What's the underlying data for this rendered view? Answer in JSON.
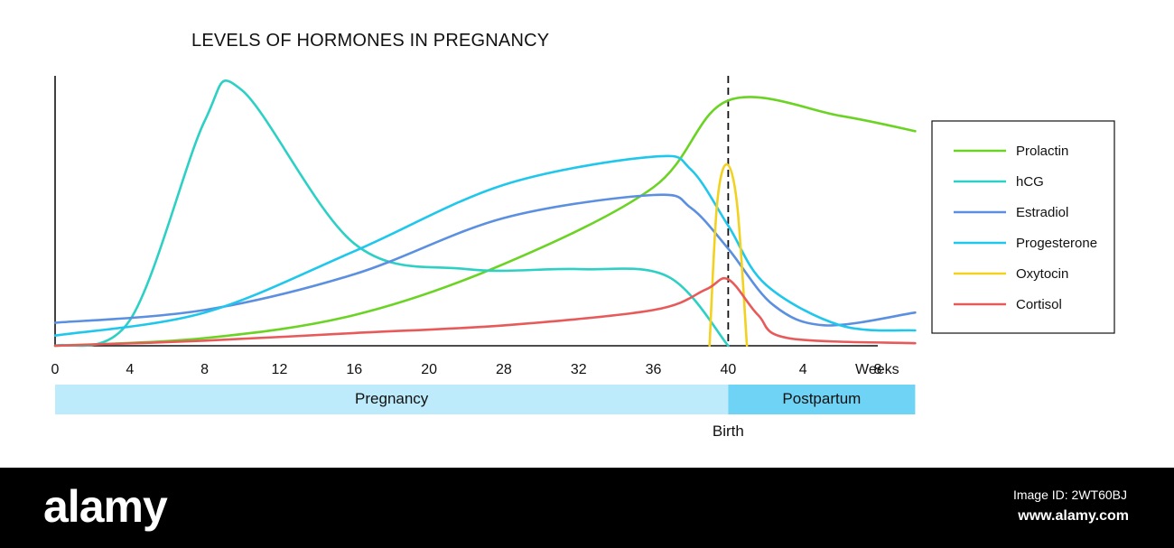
{
  "chart_data": {
    "type": "line",
    "title": "LEVELS OF HORMONES IN PREGNANCY",
    "x_ticks": [
      "0",
      "4",
      "8",
      "12",
      "16",
      "20",
      "28",
      "32",
      "36",
      "40",
      "4",
      "8"
    ],
    "x_unit_label": "Weeks",
    "phases": [
      {
        "label": "Pregnancy",
        "start_tick": 0,
        "end_tick": 9,
        "color": "#bdebfb"
      },
      {
        "label": "Postpartum",
        "start_tick": 9,
        "end_tick": 11.5,
        "color": "#6fd3f5"
      }
    ],
    "event_marker": {
      "label": "Birth",
      "at_tick": 9
    },
    "ylim": [
      0,
      100
    ],
    "series": [
      {
        "name": "Prolactin",
        "color": "#6ad323",
        "points": [
          [
            0,
            0
          ],
          [
            2,
            3
          ],
          [
            4,
            12
          ],
          [
            6,
            32
          ],
          [
            8,
            62
          ],
          [
            9,
            96
          ],
          [
            10.5,
            90
          ],
          [
            11.5,
            84
          ]
        ]
      },
      {
        "name": "hCG",
        "color": "#2dd0c4",
        "points": [
          [
            0,
            0
          ],
          [
            1,
            10
          ],
          [
            2,
            88
          ],
          [
            2.5,
            100
          ],
          [
            4,
            40
          ],
          [
            5.5,
            30
          ],
          [
            7,
            30
          ],
          [
            8.2,
            27
          ],
          [
            9,
            0
          ]
        ]
      },
      {
        "name": "Estradiol",
        "color": "#5b8fe0",
        "points": [
          [
            0,
            9
          ],
          [
            2,
            14
          ],
          [
            4,
            28
          ],
          [
            6,
            50
          ],
          [
            8,
            59
          ],
          [
            8.5,
            54
          ],
          [
            9,
            38
          ],
          [
            9.6,
            16
          ],
          [
            10.3,
            8
          ],
          [
            11.5,
            13
          ]
        ]
      },
      {
        "name": "Progesterone",
        "color": "#20c7ec",
        "points": [
          [
            0,
            4
          ],
          [
            2,
            13
          ],
          [
            4,
            37
          ],
          [
            6,
            63
          ],
          [
            8,
            74
          ],
          [
            8.5,
            69
          ],
          [
            9,
            47
          ],
          [
            9.5,
            24
          ],
          [
            10.5,
            8
          ],
          [
            11.5,
            6
          ]
        ]
      },
      {
        "name": "Oxytocin",
        "color": "#f2d21e",
        "points": [
          [
            8.75,
            0
          ],
          [
            8.85,
            55
          ],
          [
            8.98,
            71
          ],
          [
            9.12,
            55
          ],
          [
            9.25,
            0
          ]
        ]
      },
      {
        "name": "Cortisol",
        "color": "#e85a5a",
        "points": [
          [
            0,
            0
          ],
          [
            2,
            2
          ],
          [
            4,
            5
          ],
          [
            6,
            8
          ],
          [
            8,
            14
          ],
          [
            8.7,
            22
          ],
          [
            9,
            26
          ],
          [
            9.4,
            12
          ],
          [
            9.8,
            3
          ],
          [
            11.5,
            1
          ]
        ]
      }
    ]
  },
  "footer": {
    "logo": "alamy",
    "image_id": "Image ID: 2WT60BJ",
    "url": "www.alamy.com"
  }
}
